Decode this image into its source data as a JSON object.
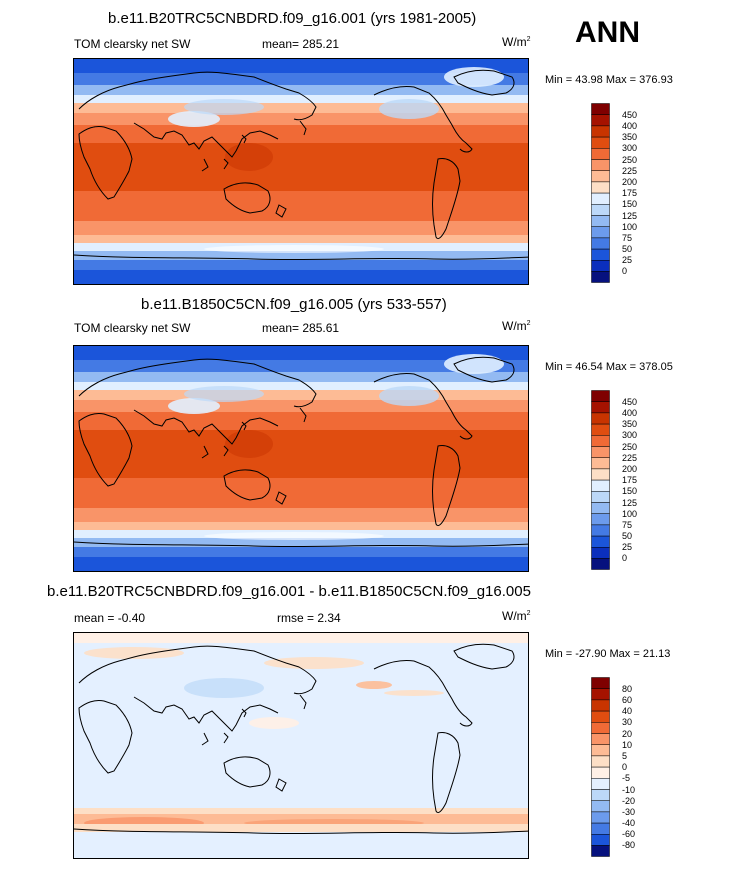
{
  "season": "ANN",
  "panels": [
    {
      "title": "b.e11.B20TRC5CNBDRD.f09_g16.001 (yrs 1981-2005)",
      "variable": "TOM clearsky net SW",
      "mean_text": "mean= 285.21",
      "units": "W/m",
      "units_sup": "2",
      "minmax_text": "Min =  43.98 Max = 376.93",
      "colorbar_labels": [
        "450",
        "400",
        "350",
        "300",
        "250",
        "225",
        "200",
        "175",
        "150",
        "125",
        "100",
        "75",
        "50",
        "25",
        "0"
      ]
    },
    {
      "title": "b.e11.B1850C5CN.f09_g16.005 (yrs 533-557)",
      "variable": "TOM clearsky net SW",
      "mean_text": "mean= 285.61",
      "units": "W/m",
      "units_sup": "2",
      "minmax_text": "Min =  46.54 Max = 378.05",
      "colorbar_labels": [
        "450",
        "400",
        "350",
        "300",
        "250",
        "225",
        "200",
        "175",
        "150",
        "125",
        "100",
        "75",
        "50",
        "25",
        "0"
      ]
    },
    {
      "title": "b.e11.B20TRC5CNBDRD.f09_g16.001 - b.e11.B1850C5CN.f09_g16.005",
      "mean_text": "mean =  -0.40",
      "rmse_text": "rmse =   2.34",
      "units": "W/m",
      "units_sup": "2",
      "minmax_text": "Min = -27.90 Max =  21.13",
      "colorbar_labels": [
        "80",
        "60",
        "40",
        "30",
        "20",
        "10",
        "5",
        "0",
        "-5",
        "-10",
        "-20",
        "-30",
        "-40",
        "-60",
        "-80"
      ]
    }
  ],
  "colors": {
    "abs_scale": [
      "#7f0000",
      "#a51200",
      "#c83400",
      "#e04d10",
      "#f06a36",
      "#f99468",
      "#fdbb95",
      "#fddfc6",
      "#e1efff",
      "#bcd8f8",
      "#93baf2",
      "#6c9bec",
      "#447ae4",
      "#1b55da",
      "#0b2fbd",
      "#06117e"
    ],
    "diff_scale": [
      "#7f0000",
      "#a51200",
      "#c83400",
      "#e04d10",
      "#f06a36",
      "#f99468",
      "#fdbb95",
      "#fddfc6",
      "#fff0e6",
      "#e4f0ff",
      "#bcd8f8",
      "#93baf2",
      "#6c9bec",
      "#447ae4",
      "#1b55da",
      "#0b2fbd"
    ]
  }
}
